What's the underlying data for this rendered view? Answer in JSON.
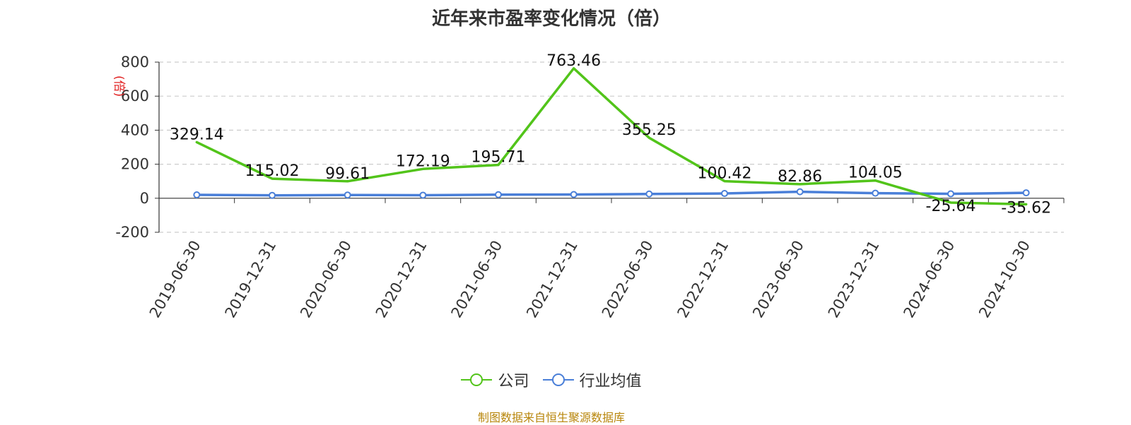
{
  "chart_data": {
    "type": "line",
    "title": "近年来市盈率变化情况（倍）",
    "ylabel": "(倍)",
    "xlabel": "",
    "categories": [
      "2019-06-30",
      "2019-12-31",
      "2020-06-30",
      "2020-12-31",
      "2021-06-30",
      "2021-12-31",
      "2022-06-30",
      "2022-12-31",
      "2023-06-30",
      "2023-12-31",
      "2024-06-30",
      "2024-10-30"
    ],
    "ylim": [
      -200,
      800
    ],
    "yticks": [
      -200,
      0,
      200,
      400,
      600,
      800
    ],
    "grid": true,
    "legend_position": "bottom",
    "series": [
      {
        "name": "公司",
        "color": "#52c41a",
        "values": [
          329.14,
          115.02,
          99.61,
          172.19,
          195.71,
          763.46,
          355.25,
          100.42,
          82.86,
          104.05,
          -25.64,
          -35.62
        ],
        "labels": [
          "329.14",
          "115.02",
          "99.61",
          "172.19",
          "195.71",
          "763.46",
          "355.25",
          "100.42",
          "82.86",
          "104.05",
          "-25.64",
          "-35.62"
        ]
      },
      {
        "name": "行业均值",
        "color": "#4a7fd8",
        "values": [
          20,
          17,
          19,
          18,
          21,
          22,
          25,
          28,
          38,
          30,
          26,
          32
        ]
      }
    ]
  },
  "source": "制图数据来自恒生聚源数据库"
}
